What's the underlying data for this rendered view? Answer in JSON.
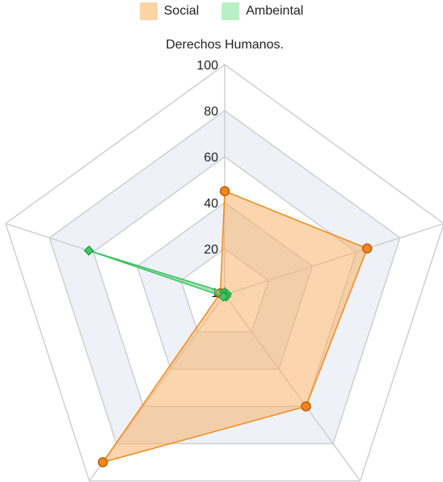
{
  "legend": {
    "items": [
      {
        "label": "Social",
        "color": "#fcd3a5"
      },
      {
        "label": "Ambeintal",
        "color": "#b6f0c4"
      }
    ]
  },
  "chart_data": {
    "type": "radar",
    "axes": [
      "Derechos Humanos.",
      "",
      "",
      "",
      ""
    ],
    "ticks": [
      "1",
      "20",
      "40",
      "60",
      "80",
      "100"
    ],
    "range": [
      0,
      100
    ],
    "grid": true,
    "legend_position": "top",
    "series": [
      {
        "name": "Social",
        "values": [
          45,
          65,
          60,
          90,
          2
        ],
        "stroke": "#f28a1a",
        "fill": "#f8b36a"
      },
      {
        "name": "Ambeintal",
        "values": [
          1,
          1,
          1,
          1,
          62
        ],
        "stroke": "#35c35b",
        "fill": "#7ddd95"
      }
    ]
  }
}
